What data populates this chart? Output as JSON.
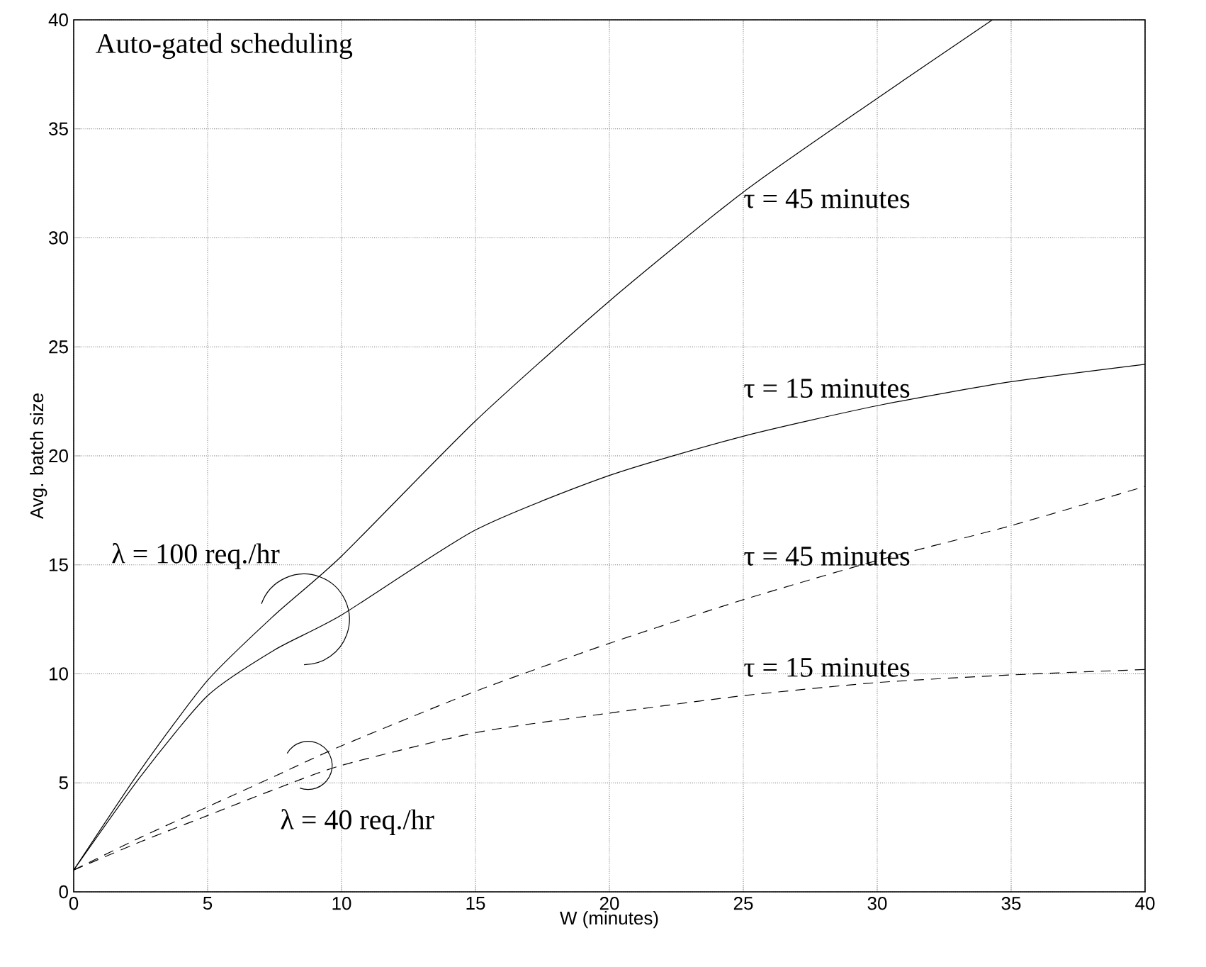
{
  "chart_data": {
    "type": "line",
    "title": "Auto-gated scheduling",
    "xlabel": "W (minutes)",
    "ylabel": "Avg. batch size",
    "x": [
      0,
      2.5,
      5,
      7.5,
      10,
      15,
      20,
      25,
      30,
      35,
      40
    ],
    "series": [
      {
        "name": "τ = 45 minutes",
        "color": "#000000",
        "line_style": "solid",
        "x": [
          0,
          2.5,
          5,
          7.5,
          10,
          15,
          20,
          25,
          30,
          34.3
        ],
        "values": [
          1,
          5.6,
          9.7,
          12.7,
          15.4,
          21.6,
          27.1,
          32.1,
          36.4,
          40
        ]
      },
      {
        "name": "τ = 15 minutes",
        "color": "#000000",
        "line_style": "solid",
        "values": [
          1,
          5.3,
          9.0,
          11.1,
          12.7,
          16.6,
          19.1,
          20.9,
          22.3,
          23.4,
          24.2
        ]
      },
      {
        "name": "τ = 45 minutes",
        "color": "#000000",
        "line_style": "dashed",
        "values": [
          1,
          2.5,
          3.9,
          5.3,
          6.7,
          9.2,
          11.4,
          13.4,
          15.2,
          16.8,
          18.6
        ]
      },
      {
        "name": "τ = 15 minutes",
        "color": "#000000",
        "line_style": "dashed",
        "values": [
          1,
          2.3,
          3.5,
          4.7,
          5.8,
          7.3,
          8.2,
          9.0,
          9.6,
          9.95,
          10.2
        ]
      }
    ],
    "annotations": [
      "λ = 100 req./hr",
      "λ = 40 req./hr"
    ],
    "xlim": [
      0,
      40
    ],
    "ylim": [
      0,
      40
    ],
    "xticks": [
      0,
      5,
      10,
      15,
      20,
      25,
      30,
      35,
      40
    ],
    "yticks": [
      0,
      5,
      10,
      15,
      20,
      25,
      30,
      35,
      40
    ],
    "grid": true
  }
}
